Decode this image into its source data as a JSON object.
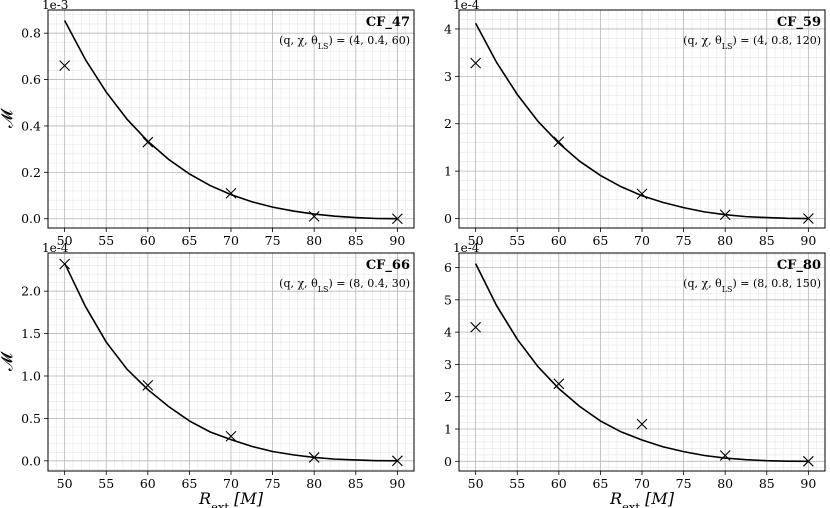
{
  "chart_data": [
    {
      "type": "line",
      "title": "CF_47",
      "subtitle": "(q, χ, θ_LS) = (4, 0.4, 60)",
      "multiplier": "1e-3",
      "ylabel": "𝓜",
      "xlabel": "",
      "xlim": [
        48,
        92
      ],
      "ylim": [
        -0.04,
        0.9
      ],
      "xticks": [
        50,
        55,
        60,
        65,
        70,
        75,
        80,
        85,
        90
      ],
      "yticks": [
        0.0,
        0.2,
        0.4,
        0.6,
        0.8
      ],
      "yticklabels": [
        "0.0",
        "0.2",
        "0.4",
        "0.6",
        "0.8"
      ],
      "grid": true,
      "series": [
        {
          "name": "",
          "kind": "fit",
          "x": [
            50,
            52.5,
            55,
            57.5,
            60,
            62.5,
            65,
            67.5,
            70,
            72.5,
            75,
            77.5,
            80,
            82.5,
            85,
            87.5,
            90
          ],
          "values": [
            0.855,
            0.686,
            0.546,
            0.429,
            0.334,
            0.256,
            0.193,
            0.143,
            0.104,
            0.073,
            0.05,
            0.033,
            0.02,
            0.011,
            0.005,
            0.001,
            0.0
          ]
        },
        {
          "name": "",
          "kind": "markers",
          "x": [
            50,
            60,
            70,
            80,
            90
          ],
          "values": [
            0.66,
            0.33,
            0.11,
            0.01,
            0.0
          ]
        }
      ]
    },
    {
      "type": "line",
      "title": "CF_59",
      "subtitle": "(q, χ, θ_LS) = (4, 0.8, 120)",
      "multiplier": "1e-4",
      "ylabel": "",
      "xlabel": "",
      "xlim": [
        48,
        92
      ],
      "ylim": [
        -0.2,
        4.4
      ],
      "xticks": [
        50,
        55,
        60,
        65,
        70,
        75,
        80,
        85,
        90
      ],
      "yticks": [
        0,
        1,
        2,
        3,
        4
      ],
      "yticklabels": [
        "0",
        "1",
        "2",
        "3",
        "4"
      ],
      "grid": true,
      "series": [
        {
          "name": "",
          "kind": "fit",
          "x": [
            50,
            52.5,
            55,
            57.5,
            60,
            62.5,
            65,
            67.5,
            70,
            72.5,
            75,
            77.5,
            80,
            82.5,
            85,
            87.5,
            90
          ],
          "values": [
            4.12,
            3.3,
            2.62,
            2.05,
            1.59,
            1.21,
            0.91,
            0.67,
            0.48,
            0.34,
            0.23,
            0.14,
            0.08,
            0.04,
            0.02,
            0.005,
            0.0
          ]
        },
        {
          "name": "",
          "kind": "markers",
          "x": [
            50,
            60,
            70,
            80,
            90
          ],
          "values": [
            3.28,
            1.62,
            0.52,
            0.08,
            0.0
          ]
        }
      ]
    },
    {
      "type": "line",
      "title": "CF_66",
      "subtitle": "(q, χ, θ_LS) = (8, 0.4, 30)",
      "multiplier": "1e-4",
      "ylabel": "𝓜",
      "xlabel": "R_ext [M]",
      "xlim": [
        48,
        92
      ],
      "ylim": [
        -0.12,
        2.45
      ],
      "xticks": [
        50,
        55,
        60,
        65,
        70,
        75,
        80,
        85,
        90
      ],
      "yticks": [
        0.0,
        0.5,
        1.0,
        1.5,
        2.0
      ],
      "yticklabels": [
        "0.0",
        "0.5",
        "1.0",
        "1.5",
        "2.0"
      ],
      "grid": true,
      "series": [
        {
          "name": "",
          "kind": "fit",
          "x": [
            50,
            52.5,
            55,
            57.5,
            60,
            62.5,
            65,
            67.5,
            70,
            72.5,
            75,
            77.5,
            80,
            82.5,
            85,
            87.5,
            90
          ],
          "values": [
            2.33,
            1.82,
            1.4,
            1.08,
            0.84,
            0.64,
            0.47,
            0.34,
            0.25,
            0.17,
            0.11,
            0.07,
            0.04,
            0.02,
            0.01,
            0.002,
            0.0
          ]
        },
        {
          "name": "",
          "kind": "markers",
          "x": [
            50,
            60,
            70,
            80,
            90
          ],
          "values": [
            2.32,
            0.89,
            0.29,
            0.04,
            0.0
          ]
        }
      ]
    },
    {
      "type": "line",
      "title": "CF_80",
      "subtitle": "(q, χ, θ_LS) = (8, 0.8, 150)",
      "multiplier": "1e-4",
      "ylabel": "",
      "xlabel": "R_ext [M]",
      "xlim": [
        48,
        92
      ],
      "ylim": [
        -0.3,
        6.45
      ],
      "xticks": [
        50,
        55,
        60,
        65,
        70,
        75,
        80,
        85,
        90
      ],
      "yticks": [
        0,
        1,
        2,
        3,
        4,
        5,
        6
      ],
      "yticklabels": [
        "0",
        "1",
        "2",
        "3",
        "4",
        "5",
        "6"
      ],
      "grid": true,
      "series": [
        {
          "name": "",
          "kind": "fit",
          "x": [
            50,
            52.5,
            55,
            57.5,
            60,
            62.5,
            65,
            67.5,
            70,
            72.5,
            75,
            77.5,
            80,
            82.5,
            85,
            87.5,
            90
          ],
          "values": [
            6.12,
            4.83,
            3.78,
            2.93,
            2.25,
            1.7,
            1.25,
            0.91,
            0.66,
            0.45,
            0.3,
            0.18,
            0.1,
            0.05,
            0.02,
            0.005,
            0.0
          ]
        },
        {
          "name": "",
          "kind": "markers",
          "x": [
            50,
            60,
            70,
            80,
            90
          ],
          "values": [
            4.15,
            2.4,
            1.15,
            0.18,
            0.0
          ]
        }
      ]
    }
  ]
}
